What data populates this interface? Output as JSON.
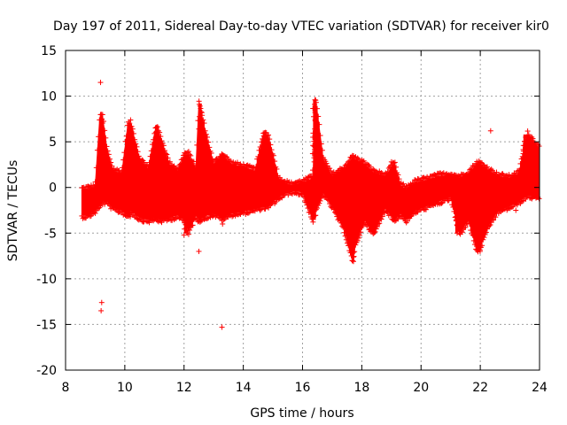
{
  "chart_data": {
    "type": "scatter",
    "title": "Day 197 of 2011, Sidereal Day-to-day VTEC variation (SDTVAR) for receiver kir0",
    "xlabel": "GPS time / hours",
    "ylabel": "SDTVAR / TECUs",
    "xlim": [
      8,
      24
    ],
    "ylim": [
      -20,
      15
    ],
    "x_ticks": [
      8,
      10,
      12,
      14,
      16,
      18,
      20,
      22,
      24
    ],
    "y_ticks": [
      -20,
      -15,
      -10,
      -5,
      0,
      5,
      10,
      15
    ],
    "x_tick_labels": [
      "8",
      "10",
      "12",
      "14",
      "16",
      "18",
      "20",
      "22",
      "24"
    ],
    "y_tick_labels": [
      "-20",
      "-15",
      "-10",
      "-5",
      "0",
      "5",
      "10",
      "15"
    ],
    "grid": true,
    "marker": "+",
    "color": "#ff0000",
    "envelope": {
      "description": "dense scatter band of SDTVAR values",
      "x": [
        8.55,
        8.75,
        9.0,
        9.15,
        9.25,
        9.4,
        9.6,
        9.9,
        10.1,
        10.2,
        10.5,
        10.8,
        11.05,
        11.2,
        11.5,
        11.8,
        12.0,
        12.15,
        12.4,
        12.5,
        12.8,
        13.0,
        13.3,
        13.6,
        14.0,
        14.4,
        14.7,
        14.85,
        15.2,
        15.6,
        16.0,
        16.35,
        16.45,
        16.7,
        17.0,
        17.4,
        17.7,
        17.8,
        18.1,
        18.4,
        18.8,
        19.1,
        19.3,
        19.5,
        19.8,
        20.2,
        20.6,
        21.0,
        21.3,
        21.6,
        21.9,
        22.0,
        22.3,
        22.6,
        23.0,
        23.3,
        23.6,
        24.0
      ],
      "upper": [
        -0.3,
        -0.2,
        0.0,
        7.5,
        7.8,
        4.0,
        1.8,
        1.5,
        6.8,
        7.0,
        3.0,
        2.0,
        6.7,
        5.5,
        2.5,
        1.8,
        3.5,
        3.6,
        2.0,
        9.2,
        5.0,
        2.5,
        3.5,
        2.5,
        2.2,
        1.8,
        6.0,
        5.5,
        0.8,
        0.2,
        0.5,
        1.0,
        9.5,
        3.0,
        1.2,
        2.0,
        3.3,
        3.0,
        2.5,
        1.6,
        1.2,
        2.6,
        0.2,
        -0.2,
        0.5,
        0.8,
        1.2,
        1.3,
        1.0,
        1.5,
        2.6,
        2.5,
        1.8,
        1.2,
        1.0,
        1.5,
        5.8,
        4.2
      ],
      "lower": [
        -3.0,
        -3.0,
        -2.5,
        -2.0,
        -1.5,
        -1.5,
        -2.2,
        -2.5,
        -3.0,
        -2.5,
        -3.3,
        -3.5,
        -3.3,
        -3.5,
        -3.3,
        -3.0,
        -3.5,
        -4.8,
        -3.0,
        -3.5,
        -3.0,
        -2.8,
        -3.3,
        -2.8,
        -2.6,
        -2.3,
        -2.0,
        -2.0,
        -1.0,
        -0.3,
        -0.5,
        -3.5,
        -2.5,
        -0.5,
        -2.0,
        -4.5,
        -8.0,
        -6.0,
        -3.5,
        -5.0,
        -2.2,
        -3.5,
        -2.8,
        -3.5,
        -2.5,
        -2.0,
        -1.5,
        -1.0,
        -5.0,
        -3.5,
        -7.0,
        -6.5,
        -4.0,
        -2.5,
        -2.0,
        -1.5,
        -0.8,
        -1.0
      ]
    },
    "outliers": [
      {
        "x": 9.18,
        "y": 11.5
      },
      {
        "x": 9.22,
        "y": -12.6
      },
      {
        "x": 9.2,
        "y": -13.5
      },
      {
        "x": 12.5,
        "y": -7.0
      },
      {
        "x": 13.28,
        "y": -15.3
      },
      {
        "x": 22.35,
        "y": 6.2
      },
      {
        "x": 16.42,
        "y": 9.6
      },
      {
        "x": 17.72,
        "y": -8.1
      },
      {
        "x": 12.0,
        "y": -5.2
      },
      {
        "x": 13.3,
        "y": -4.0
      },
      {
        "x": 19.0,
        "y": 2.8
      },
      {
        "x": 23.2,
        "y": -2.5
      }
    ],
    "spikes": [
      {
        "x": 9.2,
        "top": 7.9,
        "bottom": -1.5
      },
      {
        "x": 10.15,
        "top": 7.0,
        "bottom": -3.2
      },
      {
        "x": 11.1,
        "top": 6.8,
        "bottom": -3.4
      },
      {
        "x": 12.05,
        "top": 3.6,
        "bottom": -5.0
      },
      {
        "x": 12.55,
        "top": 9.2,
        "bottom": -3.5
      },
      {
        "x": 13.3,
        "top": 3.8,
        "bottom": -3.3
      },
      {
        "x": 14.7,
        "top": 6.0,
        "bottom": -2.0
      },
      {
        "x": 16.4,
        "top": 9.6,
        "bottom": -3.5
      },
      {
        "x": 17.7,
        "top": 3.3,
        "bottom": -8.0
      },
      {
        "x": 18.3,
        "top": 1.8,
        "bottom": -4.8
      },
      {
        "x": 21.2,
        "top": 1.0,
        "bottom": -5.0
      },
      {
        "x": 21.95,
        "top": 2.6,
        "bottom": -7.0
      },
      {
        "x": 23.5,
        "top": 5.8,
        "bottom": -0.8
      }
    ]
  }
}
